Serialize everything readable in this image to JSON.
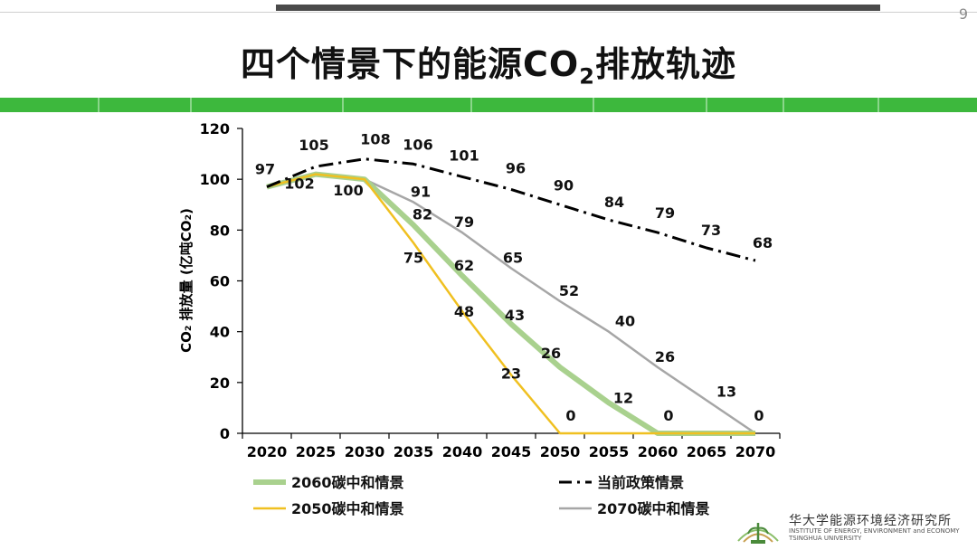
{
  "page": {
    "number": "9"
  },
  "title": {
    "pre": "四个情景下的能源CO",
    "sub": "2",
    "post": "排放轨迹"
  },
  "footer": {
    "cn": "华大学能源环境经济研究所",
    "en_line1": "INSTITUTE OF ENERGY, ENVIRONMENT and ECONOMY",
    "en_line2": "TSINGHUA UNIVERSITY"
  },
  "colors": {
    "band": "#3db83d",
    "current": "#000000",
    "s2060": "#a9d18e",
    "s2050": "#f0c020",
    "s2070": "#a6a6a6"
  },
  "chart_data": {
    "type": "line",
    "title": "",
    "xlabel": "",
    "ylabel": "CO₂ 排放量 (亿吨CO₂)",
    "ylim": [
      0,
      120
    ],
    "yticks": [
      0,
      20,
      40,
      60,
      80,
      100,
      120
    ],
    "x": [
      2020,
      2025,
      2030,
      2035,
      2040,
      2045,
      2050,
      2055,
      2060,
      2065,
      2070
    ],
    "grid": false,
    "legend_position": "bottom",
    "series": [
      {
        "key": "current",
        "name": "当前政策情景",
        "style": "dashdot",
        "points": [
          [
            2020,
            97
          ],
          [
            2025,
            105
          ],
          [
            2030,
            108
          ],
          [
            2035,
            106
          ],
          [
            2040,
            101
          ],
          [
            2045,
            96
          ],
          [
            2050,
            90
          ],
          [
            2055,
            84
          ],
          [
            2060,
            79
          ],
          [
            2065,
            73
          ],
          [
            2070,
            68
          ]
        ]
      },
      {
        "key": "s2060",
        "name": "2060碳中和情景",
        "style": "solid-thick",
        "points": [
          [
            2020,
            97
          ],
          [
            2025,
            102
          ],
          [
            2030,
            100
          ],
          [
            2035,
            82
          ],
          [
            2040,
            62
          ],
          [
            2045,
            43
          ],
          [
            2050,
            26
          ],
          [
            2055,
            12
          ],
          [
            2060,
            0
          ],
          [
            2065,
            0
          ],
          [
            2070,
            0
          ]
        ]
      },
      {
        "key": "s2050",
        "name": "2050碳中和情景",
        "style": "solid",
        "points": [
          [
            2020,
            97
          ],
          [
            2025,
            102
          ],
          [
            2030,
            100
          ],
          [
            2035,
            75
          ],
          [
            2040,
            48
          ],
          [
            2045,
            23
          ],
          [
            2050,
            0
          ],
          [
            2055,
            0
          ],
          [
            2060,
            0
          ],
          [
            2065,
            0
          ],
          [
            2070,
            0
          ]
        ]
      },
      {
        "key": "s2070",
        "name": "2070碳中和情景",
        "style": "solid",
        "points": [
          [
            2020,
            97
          ],
          [
            2025,
            102
          ],
          [
            2030,
            100
          ],
          [
            2035,
            91
          ],
          [
            2040,
            79
          ],
          [
            2045,
            65
          ],
          [
            2050,
            52
          ],
          [
            2055,
            40
          ],
          [
            2060,
            26
          ],
          [
            2065,
            13
          ],
          [
            2070,
            0
          ]
        ]
      }
    ],
    "data_labels": [
      {
        "x": 2020,
        "y": 97,
        "text": "97"
      },
      {
        "x": 2025,
        "y": 105,
        "text": "105"
      },
      {
        "x": 2030,
        "y": 108,
        "text": "108"
      },
      {
        "x": 2035,
        "y": 106,
        "text": "106"
      },
      {
        "x": 2040,
        "y": 101,
        "text": "101"
      },
      {
        "x": 2045,
        "y": 96,
        "text": "96"
      },
      {
        "x": 2050,
        "y": 90,
        "text": "90"
      },
      {
        "x": 2055,
        "y": 84,
        "text": "84"
      },
      {
        "x": 2060,
        "y": 79,
        "text": "79"
      },
      {
        "x": 2065,
        "y": 73,
        "text": "73"
      },
      {
        "x": 2070,
        "y": 68,
        "text": "68"
      },
      {
        "x": 2025,
        "y": 102,
        "text": "102"
      },
      {
        "x": 2030,
        "y": 100,
        "text": "100"
      },
      {
        "x": 2035,
        "y": 91,
        "text": "91"
      },
      {
        "x": 2035,
        "y": 82,
        "text": "82"
      },
      {
        "x": 2035,
        "y": 75,
        "text": "75"
      },
      {
        "x": 2040,
        "y": 79,
        "text": "79"
      },
      {
        "x": 2040,
        "y": 62,
        "text": "62"
      },
      {
        "x": 2040,
        "y": 48,
        "text": "48"
      },
      {
        "x": 2045,
        "y": 65,
        "text": "65"
      },
      {
        "x": 2045,
        "y": 43,
        "text": "43"
      },
      {
        "x": 2045,
        "y": 23,
        "text": "23"
      },
      {
        "x": 2050,
        "y": 52,
        "text": "52"
      },
      {
        "x": 2050,
        "y": 26,
        "text": "26"
      },
      {
        "x": 2050,
        "y": 0,
        "text": "0"
      },
      {
        "x": 2055,
        "y": 40,
        "text": "40"
      },
      {
        "x": 2055,
        "y": 12,
        "text": "12"
      },
      {
        "x": 2060,
        "y": 26,
        "text": "26"
      },
      {
        "x": 2060,
        "y": 0,
        "text": "0"
      },
      {
        "x": 2065,
        "y": 13,
        "text": "13"
      },
      {
        "x": 2070,
        "y": 0,
        "text": "0"
      }
    ]
  }
}
